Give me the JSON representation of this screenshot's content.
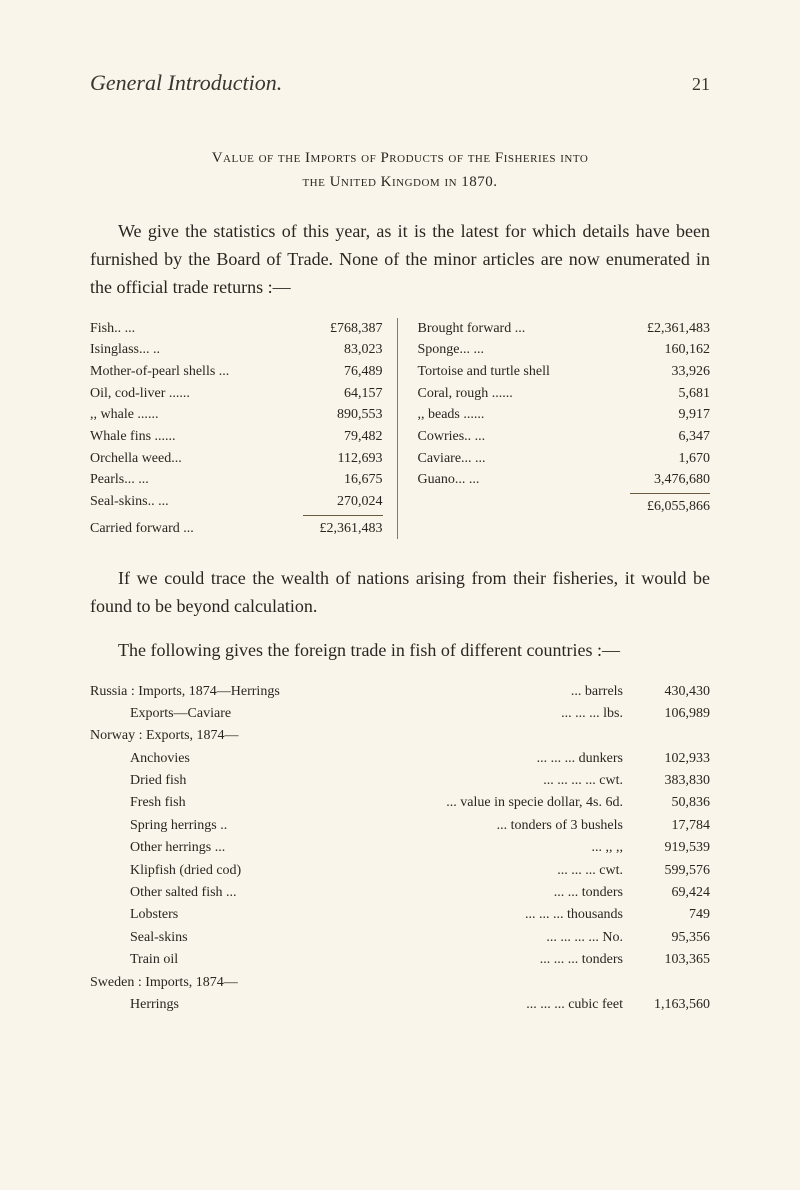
{
  "header": {
    "title": "General Introduction.",
    "page": "21"
  },
  "section1": {
    "title_line1": "Value of the Imports of Products of the Fisheries into",
    "title_line2": "the United Kingdom in 1870.",
    "para": "We give the statistics of this year, as it is the latest for which details have been furnished by the Board of Trade. None of the minor articles are now enumerated in the official trade returns :—"
  },
  "imports_left": [
    {
      "label": "Fish",
      "dots": ".. ...",
      "value": "£768,387"
    },
    {
      "label": "Isinglass",
      "dots": "... ..",
      "value": "83,023"
    },
    {
      "label": "Mother-of-pearl shells ...",
      "dots": "",
      "value": "76,489"
    },
    {
      "label": "Oil, cod-liver ...",
      "dots": "...",
      "value": "64,157"
    },
    {
      "label": ",, whale ...",
      "dots": "...",
      "value": "890,553"
    },
    {
      "label": "Whale fins ...",
      "dots": "...",
      "value": "79,482"
    },
    {
      "label": "Orchella weed",
      "dots": "...",
      "value": "112,693"
    },
    {
      "label": "Pearls",
      "dots": "... ...",
      "value": "16,675"
    },
    {
      "label": "Seal-skins",
      "dots": ".. ...",
      "value": "270,024"
    }
  ],
  "imports_left_total": {
    "label": "Carried forward ...",
    "value": "£2,361,483"
  },
  "imports_right": [
    {
      "label": "Brought forward ...",
      "dots": "",
      "value": "£2,361,483"
    },
    {
      "label": "Sponge",
      "dots": "... ...",
      "value": "160,162"
    },
    {
      "label": "Tortoise and turtle shell",
      "dots": "",
      "value": "33,926"
    },
    {
      "label": "Coral, rough ...",
      "dots": "...",
      "value": "5,681"
    },
    {
      "label": ",, beads ...",
      "dots": "...",
      "value": "9,917"
    },
    {
      "label": "Cowries",
      "dots": ".. ...",
      "value": "6,347"
    },
    {
      "label": "Caviare",
      "dots": "... ...",
      "value": "1,670"
    },
    {
      "label": "Guano",
      "dots": "... ...",
      "value": "3,476,680"
    }
  ],
  "imports_right_total": {
    "label": "",
    "value": "£6,055,866"
  },
  "section2": {
    "para1": "If we could trace the wealth of nations arising from their fisheries, it would be found to be beyond calculation.",
    "para2": "The following gives the foreign trade in fish of different countries :—"
  },
  "foreign_trade": [
    {
      "label": "Russia : Imports, 1874—Herrings",
      "indent": false,
      "mid": "... barrels",
      "value": "430,430"
    },
    {
      "label": "Exports—Caviare",
      "indent": true,
      "mid": "... ... ... lbs.",
      "value": "106,989"
    },
    {
      "label": "Norway : Exports, 1874—",
      "indent": false,
      "mid": "",
      "value": ""
    },
    {
      "label": "Anchovies",
      "indent": true,
      "mid": "... ... ... dunkers",
      "value": "102,933"
    },
    {
      "label": "Dried fish",
      "indent": true,
      "mid": "... ... ... ... cwt.",
      "value": "383,830"
    },
    {
      "label": "Fresh fish",
      "indent": true,
      "mid": "... value in specie dollar, 4s. 6d.",
      "value": "50,836"
    },
    {
      "label": "Spring herrings ..",
      "indent": true,
      "mid": "... tonders of 3 bushels",
      "value": "17,784"
    },
    {
      "label": "Other herrings ...",
      "indent": true,
      "mid": "... ,, ,,",
      "value": "919,539"
    },
    {
      "label": "Klipfish (dried cod)",
      "indent": true,
      "mid": "... ... ... cwt.",
      "value": "599,576"
    },
    {
      "label": "Other salted fish ...",
      "indent": true,
      "mid": "... ... tonders",
      "value": "69,424"
    },
    {
      "label": "Lobsters",
      "indent": true,
      "mid": "... ... ... thousands",
      "value": "749"
    },
    {
      "label": "Seal-skins",
      "indent": true,
      "mid": "... ... ... ... No.",
      "value": "95,356"
    },
    {
      "label": "Train oil",
      "indent": true,
      "mid": "... ... ... tonders",
      "value": "103,365"
    },
    {
      "label": "Sweden : Imports, 1874—",
      "indent": false,
      "mid": "",
      "value": ""
    },
    {
      "label": "Herrings",
      "indent": true,
      "mid": "... ... ... cubic feet",
      "value": "1,163,560"
    }
  ],
  "colors": {
    "background": "#f9f5ea",
    "text": "#2a2520",
    "rule": "#6a5a40"
  }
}
